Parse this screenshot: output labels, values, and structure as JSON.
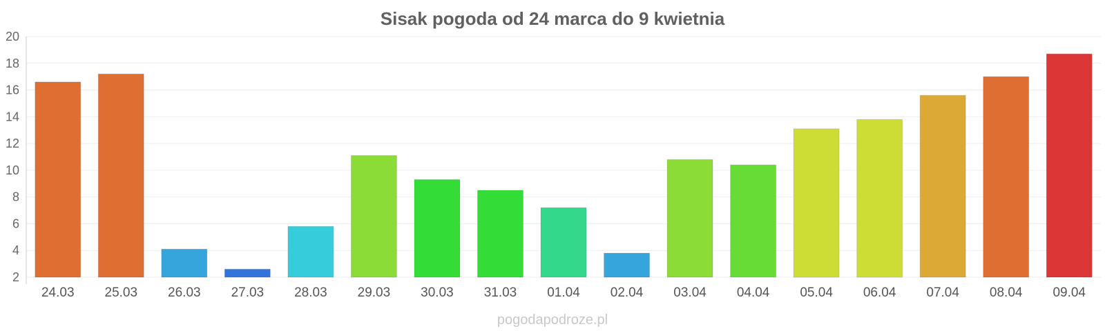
{
  "chart_data": {
    "type": "bar",
    "title": "Sisak pogoda od 24 marca do 9 kwietnia",
    "categories": [
      "24.03",
      "25.03",
      "26.03",
      "27.03",
      "28.03",
      "29.03",
      "30.03",
      "31.03",
      "01.04",
      "02.04",
      "03.04",
      "04.04",
      "05.04",
      "06.04",
      "07.04",
      "08.04",
      "09.04"
    ],
    "values": [
      16.6,
      17.2,
      4.1,
      2.6,
      5.8,
      11.1,
      9.3,
      8.5,
      7.2,
      3.8,
      10.8,
      10.4,
      13.1,
      13.8,
      15.6,
      17.0,
      18.7
    ],
    "colors": [
      "#df6e33",
      "#df6e33",
      "#36a5dc",
      "#3373dc",
      "#36ccdc",
      "#8bdc36",
      "#33dc36",
      "#33dc36",
      "#33d88a",
      "#36a5dc",
      "#8bdc36",
      "#68dc36",
      "#cedc36",
      "#cedc36",
      "#dca836",
      "#df6e33",
      "#dc3636"
    ],
    "ylim": [
      2,
      20
    ],
    "yticks": [
      2,
      4,
      6,
      8,
      10,
      12,
      14,
      16,
      18,
      20
    ],
    "xlabel": "",
    "ylabel": "",
    "grid": true,
    "legend": "none"
  },
  "watermark": "pogodapodroze.pl"
}
